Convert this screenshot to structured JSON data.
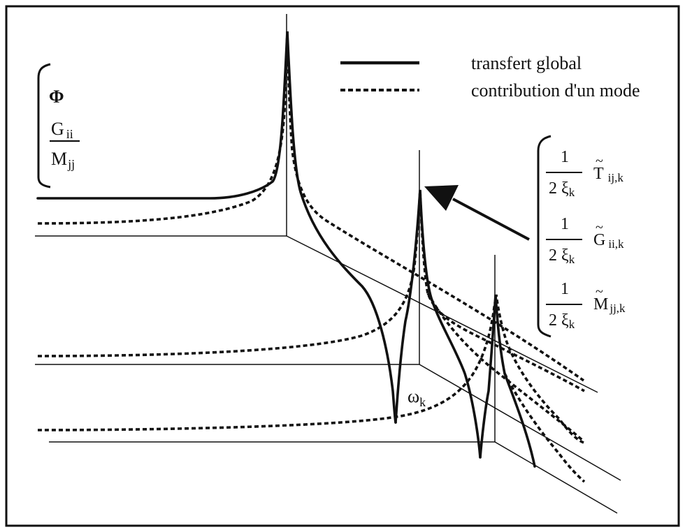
{
  "legend": {
    "solid_label": "transfert global",
    "dashed_label": "contribution d'un mode"
  },
  "left_label": {
    "line1": "Φ",
    "line2_main": "G",
    "line2_sub": "ii",
    "line3_main": "M",
    "line3_sub": "jj"
  },
  "right_label": {
    "frac_num": "1",
    "frac_den_main": "2 ξ",
    "frac_den_sub": "k",
    "tilde": "~",
    "t_main": "T",
    "t_sub": "ij,k",
    "g_main": "G",
    "g_sub": "ii,k",
    "m_main": "M",
    "m_sub": "jj,k"
  },
  "omega_label": {
    "main": "ω",
    "sub": "k"
  },
  "colors": {
    "ink": "#111111",
    "background": "#ffffff"
  }
}
